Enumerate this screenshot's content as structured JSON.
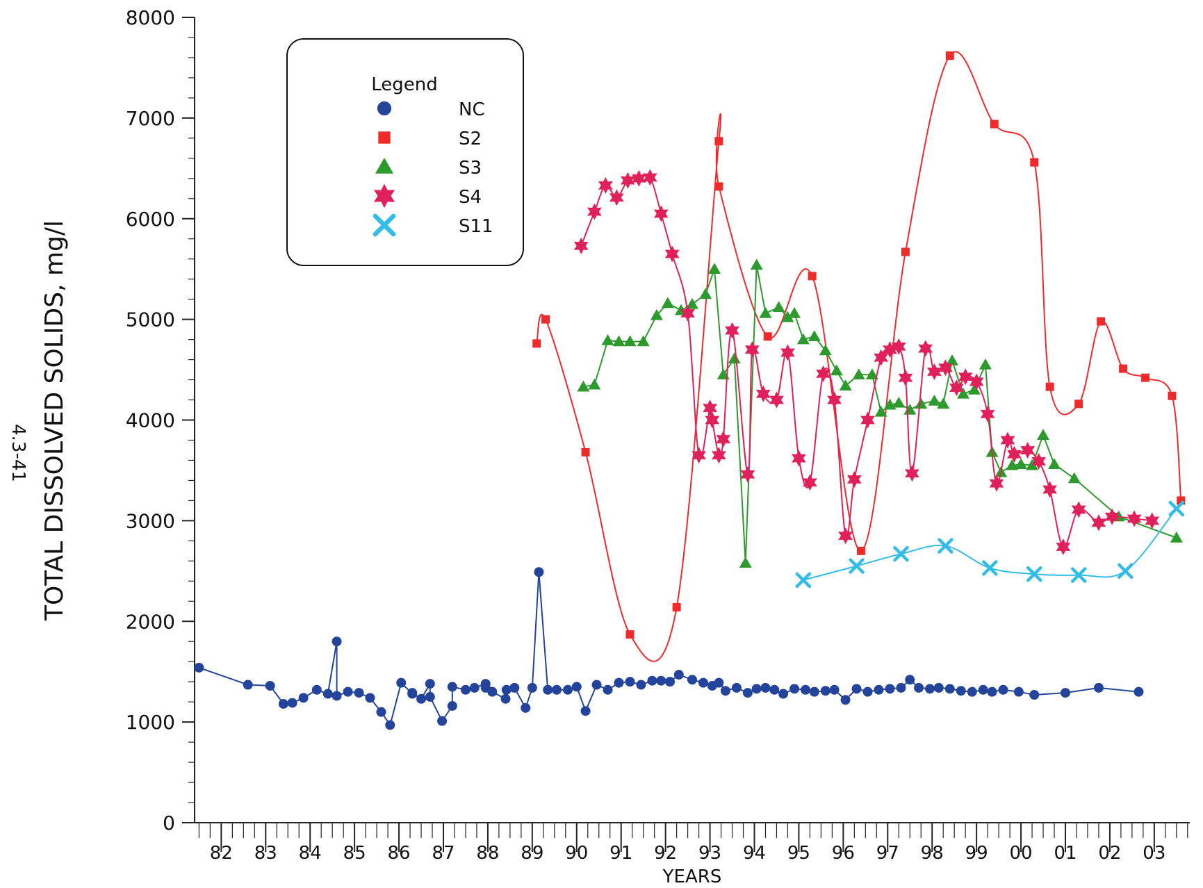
{
  "page_number": "4.3-41",
  "colors": {
    "NC": "#23449a",
    "S2": "#ee2a2a",
    "S3": "#2c9a2c",
    "S4": "#e0205a",
    "S11": "#33bde6"
  },
  "chart_data": {
    "type": "line",
    "xlabel": "YEARS",
    "ylabel": "TOTAL DISSOLVED SOLIDS, mg/l",
    "ylim": [
      0,
      8000
    ],
    "yticks": [
      0,
      1000,
      2000,
      3000,
      4000,
      5000,
      6000,
      7000,
      8000
    ],
    "xlim": [
      1981.4,
      2003.8
    ],
    "xtick_labels": [
      "82",
      "83",
      "84",
      "85",
      "86",
      "87",
      "88",
      "89",
      "90",
      "91",
      "92",
      "93",
      "94",
      "95",
      "96",
      "97",
      "98",
      "99",
      "00",
      "01",
      "02",
      "03"
    ],
    "grid": false,
    "legend": {
      "title": "Legend",
      "placement": "top-left",
      "entries": [
        "NC",
        "S2",
        "S3",
        "S4",
        "S11"
      ]
    },
    "series": [
      {
        "name": "NC",
        "marker": "circle",
        "x": [
          1981.5,
          1982.6,
          1983.1,
          1983.4,
          1983.6,
          1983.85,
          1984.15,
          1984.4,
          1984.6,
          1984.6,
          1984.85,
          1985.1,
          1985.35,
          1985.6,
          1985.8,
          1986.05,
          1986.3,
          1986.3,
          1986.5,
          1986.7,
          1986.7,
          1986.97,
          1987.2,
          1987.2,
          1987.5,
          1987.7,
          1987.95,
          1987.95,
          1988.1,
          1988.4,
          1988.42,
          1988.6,
          1988.85,
          1989.0,
          1989.15,
          1989.35,
          1989.55,
          1989.8,
          1990.0,
          1990.2,
          1990.45,
          1990.7,
          1990.95,
          1991.2,
          1991.45,
          1991.7,
          1991.9,
          1992.1,
          1992.3,
          1992.6,
          1992.85,
          1993.05,
          1993.2,
          1993.35,
          1993.6,
          1993.85,
          1994.05,
          1994.25,
          1994.45,
          1994.65,
          1994.9,
          1995.15,
          1995.35,
          1995.6,
          1995.8,
          1996.05,
          1996.3,
          1996.55,
          1996.8,
          1997.05,
          1997.3,
          1997.5,
          1997.7,
          1997.95,
          1998.15,
          1998.4,
          1998.65,
          1998.9,
          1999.15,
          1999.35,
          1999.6,
          1999.95,
          2000.3,
          2001.0,
          2001.75,
          2002.65
        ],
        "y": [
          1540,
          1370,
          1360,
          1180,
          1190,
          1240,
          1320,
          1280,
          1800,
          1260,
          1300,
          1290,
          1240,
          1100,
          970,
          1390,
          1280,
          1290,
          1230,
          1380,
          1250,
          1010,
          1160,
          1350,
          1320,
          1340,
          1380,
          1340,
          1300,
          1230,
          1320,
          1340,
          1140,
          1340,
          2490,
          1320,
          1320,
          1320,
          1350,
          1110,
          1370,
          1320,
          1390,
          1400,
          1370,
          1410,
          1410,
          1400,
          1470,
          1420,
          1390,
          1360,
          1390,
          1310,
          1340,
          1290,
          1330,
          1340,
          1320,
          1280,
          1330,
          1320,
          1300,
          1310,
          1320,
          1220,
          1330,
          1300,
          1320,
          1330,
          1340,
          1420,
          1340,
          1330,
          1340,
          1330,
          1310,
          1300,
          1320,
          1300,
          1320,
          1300,
          1270,
          1290,
          1340,
          1300
        ]
      },
      {
        "name": "S2",
        "marker": "square",
        "x": [
          1989.1,
          1989.3,
          1990.2,
          1991.2,
          1992.25,
          1993.2,
          1993.2,
          1994.3,
          1995.3,
          1996.4,
          1997.4,
          1998.4,
          1999.4,
          2000.3,
          2000.65,
          2001.3,
          2001.8,
          2002.3,
          2002.8,
          2003.4,
          2003.6
        ],
        "y": [
          4760,
          5000,
          3680,
          1870,
          2140,
          6770,
          6320,
          4830,
          5430,
          2700,
          5670,
          7620,
          6940,
          6560,
          4330,
          4160,
          4980,
          4510,
          4420,
          4240,
          3200
        ]
      },
      {
        "name": "S3",
        "marker": "triangle",
        "x": [
          1990.15,
          1990.4,
          1990.7,
          1990.95,
          1991.2,
          1991.5,
          1991.8,
          1992.05,
          1992.35,
          1992.6,
          1992.9,
          1993.1,
          1993.3,
          1993.55,
          1993.8,
          1994.05,
          1994.25,
          1994.55,
          1994.75,
          1994.9,
          1995.1,
          1995.35,
          1995.6,
          1995.85,
          1996.05,
          1996.35,
          1996.65,
          1996.85,
          1997.05,
          1997.25,
          1997.5,
          1997.75,
          1998.05,
          1998.25,
          1998.45,
          1998.7,
          1998.95,
          1999.2,
          1999.35,
          1999.55,
          1999.8,
          2000.0,
          2000.25,
          2000.5,
          2000.75,
          2001.2,
          2002.2,
          2003.5
        ],
        "y": [
          4330,
          4350,
          4790,
          4780,
          4780,
          4780,
          5040,
          5160,
          5090,
          5150,
          5250,
          5500,
          4450,
          4610,
          2580,
          5540,
          5060,
          5120,
          5020,
          5060,
          4800,
          4830,
          4690,
          4490,
          4340,
          4450,
          4450,
          4080,
          4150,
          4170,
          4100,
          4160,
          4190,
          4160,
          4590,
          4260,
          4300,
          4550,
          3680,
          3480,
          3550,
          3560,
          3550,
          3850,
          3560,
          3420,
          3040,
          2830
        ]
      },
      {
        "name": "S4",
        "marker": "star",
        "x": [
          1990.1,
          1990.4,
          1990.65,
          1990.9,
          1991.15,
          1991.4,
          1991.65,
          1991.9,
          1992.15,
          1992.5,
          1992.75,
          1993.0,
          1993.05,
          1993.2,
          1993.3,
          1993.5,
          1993.85,
          1993.95,
          1994.2,
          1994.5,
          1994.75,
          1995.0,
          1995.25,
          1995.55,
          1995.8,
          1996.05,
          1996.25,
          1996.55,
          1996.85,
          1997.05,
          1997.25,
          1997.4,
          1997.55,
          1997.85,
          1998.05,
          1998.3,
          1998.55,
          1998.75,
          1999.0,
          1999.25,
          1999.45,
          1999.7,
          1999.85,
          2000.15,
          2000.4,
          2000.65,
          2000.95,
          2001.3,
          2001.75,
          2002.05,
          2002.55,
          2002.95
        ],
        "y": [
          5730,
          6070,
          6330,
          6210,
          6380,
          6400,
          6410,
          6050,
          5650,
          5060,
          3650,
          4120,
          4000,
          3650,
          3810,
          4890,
          3460,
          4700,
          4260,
          4200,
          4670,
          3620,
          3380,
          4460,
          4200,
          2850,
          3410,
          4000,
          4620,
          4700,
          4730,
          4420,
          3470,
          4710,
          4480,
          4520,
          4320,
          4430,
          4380,
          4060,
          3370,
          3800,
          3660,
          3700,
          3590,
          3310,
          2740,
          3110,
          2980,
          3040,
          3020,
          3000
        ]
      },
      {
        "name": "S11",
        "marker": "x",
        "x": [
          1995.1,
          1996.3,
          1997.3,
          1998.3,
          1999.3,
          2000.3,
          2001.3,
          2002.35,
          2003.5
        ],
        "y": [
          2410,
          2550,
          2670,
          2750,
          2530,
          2470,
          2460,
          2500,
          3120
        ]
      }
    ]
  }
}
